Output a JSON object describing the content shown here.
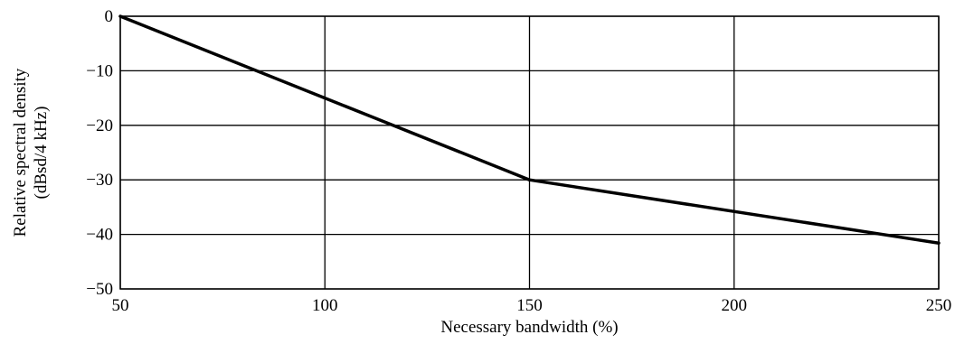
{
  "chart_data": {
    "type": "line",
    "title": "",
    "xlabel": "Necessary bandwidth (%)",
    "ylabel_lines": [
      "Relative spectral density",
      "(dBsd/4 kHz)"
    ],
    "xlim": [
      50,
      250
    ],
    "ylim": [
      -50,
      0
    ],
    "x_ticks": [
      50,
      100,
      150,
      200,
      250
    ],
    "y_ticks": [
      0,
      -10,
      -20,
      -30,
      -40,
      -50
    ],
    "x_tick_labels": [
      "50",
      "100",
      "150",
      "200",
      "250"
    ],
    "y_tick_labels": [
      "0",
      "−10",
      "−20",
      "−30",
      "−40",
      "−50"
    ],
    "grid": true,
    "legend": "none",
    "series": [
      {
        "color": "#000000",
        "points": [
          {
            "x": 50,
            "y": 0
          },
          {
            "x": 150,
            "y": -30
          },
          {
            "x": 250,
            "y": -41.6
          }
        ]
      }
    ]
  }
}
